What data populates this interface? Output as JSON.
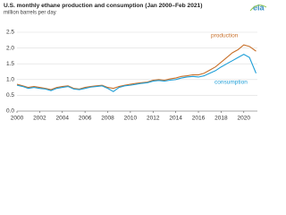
{
  "chart_data": {
    "type": "line",
    "title": "U.S. monthly ethane production and consumption (Jan 2000–Feb 2021)",
    "subtitle": "million barrels per day",
    "x": [
      2000,
      2000.5,
      2001,
      2001.5,
      2002,
      2002.5,
      2003,
      2003.5,
      2004,
      2004.5,
      2005,
      2005.5,
      2006,
      2006.5,
      2007,
      2007.5,
      2008,
      2008.5,
      2009,
      2009.5,
      2010,
      2010.5,
      2011,
      2011.5,
      2012,
      2012.5,
      2013,
      2013.5,
      2014,
      2014.5,
      2015,
      2015.5,
      2016,
      2016.5,
      2017,
      2017.5,
      2018,
      2018.5,
      2019,
      2019.5,
      2020,
      2020.5,
      2021.08
    ],
    "series": [
      {
        "name": "production",
        "color": "#c8702a",
        "values": [
          0.85,
          0.8,
          0.75,
          0.78,
          0.75,
          0.72,
          0.68,
          0.75,
          0.78,
          0.8,
          0.72,
          0.7,
          0.75,
          0.78,
          0.8,
          0.82,
          0.75,
          0.72,
          0.78,
          0.82,
          0.85,
          0.88,
          0.9,
          0.92,
          0.98,
          1.0,
          0.98,
          1.02,
          1.05,
          1.1,
          1.12,
          1.15,
          1.15,
          1.2,
          1.3,
          1.4,
          1.55,
          1.7,
          1.85,
          1.95,
          2.1,
          2.05,
          1.9
        ]
      },
      {
        "name": "consumption",
        "color": "#1f9fd8",
        "values": [
          0.82,
          0.78,
          0.72,
          0.75,
          0.72,
          0.7,
          0.65,
          0.72,
          0.75,
          0.78,
          0.7,
          0.68,
          0.72,
          0.76,
          0.78,
          0.8,
          0.72,
          0.62,
          0.75,
          0.8,
          0.82,
          0.85,
          0.88,
          0.9,
          0.95,
          0.97,
          0.95,
          0.98,
          1.0,
          1.05,
          1.08,
          1.1,
          1.08,
          1.12,
          1.2,
          1.28,
          1.4,
          1.5,
          1.6,
          1.7,
          1.8,
          1.7,
          1.2
        ]
      }
    ],
    "xlim": [
      2000,
      2021.2
    ],
    "xticks": [
      2000,
      2002,
      2004,
      2006,
      2008,
      2010,
      2012,
      2014,
      2016,
      2018,
      2020
    ],
    "ylim": [
      0,
      2.5
    ],
    "yticks": [
      {
        "value": 0,
        "label": "0.0"
      },
      0.5,
      {
        "value": 1,
        "label": "1.0"
      },
      1.5,
      {
        "value": 2,
        "label": "2.0"
      },
      2.5
    ],
    "grid": true
  }
}
